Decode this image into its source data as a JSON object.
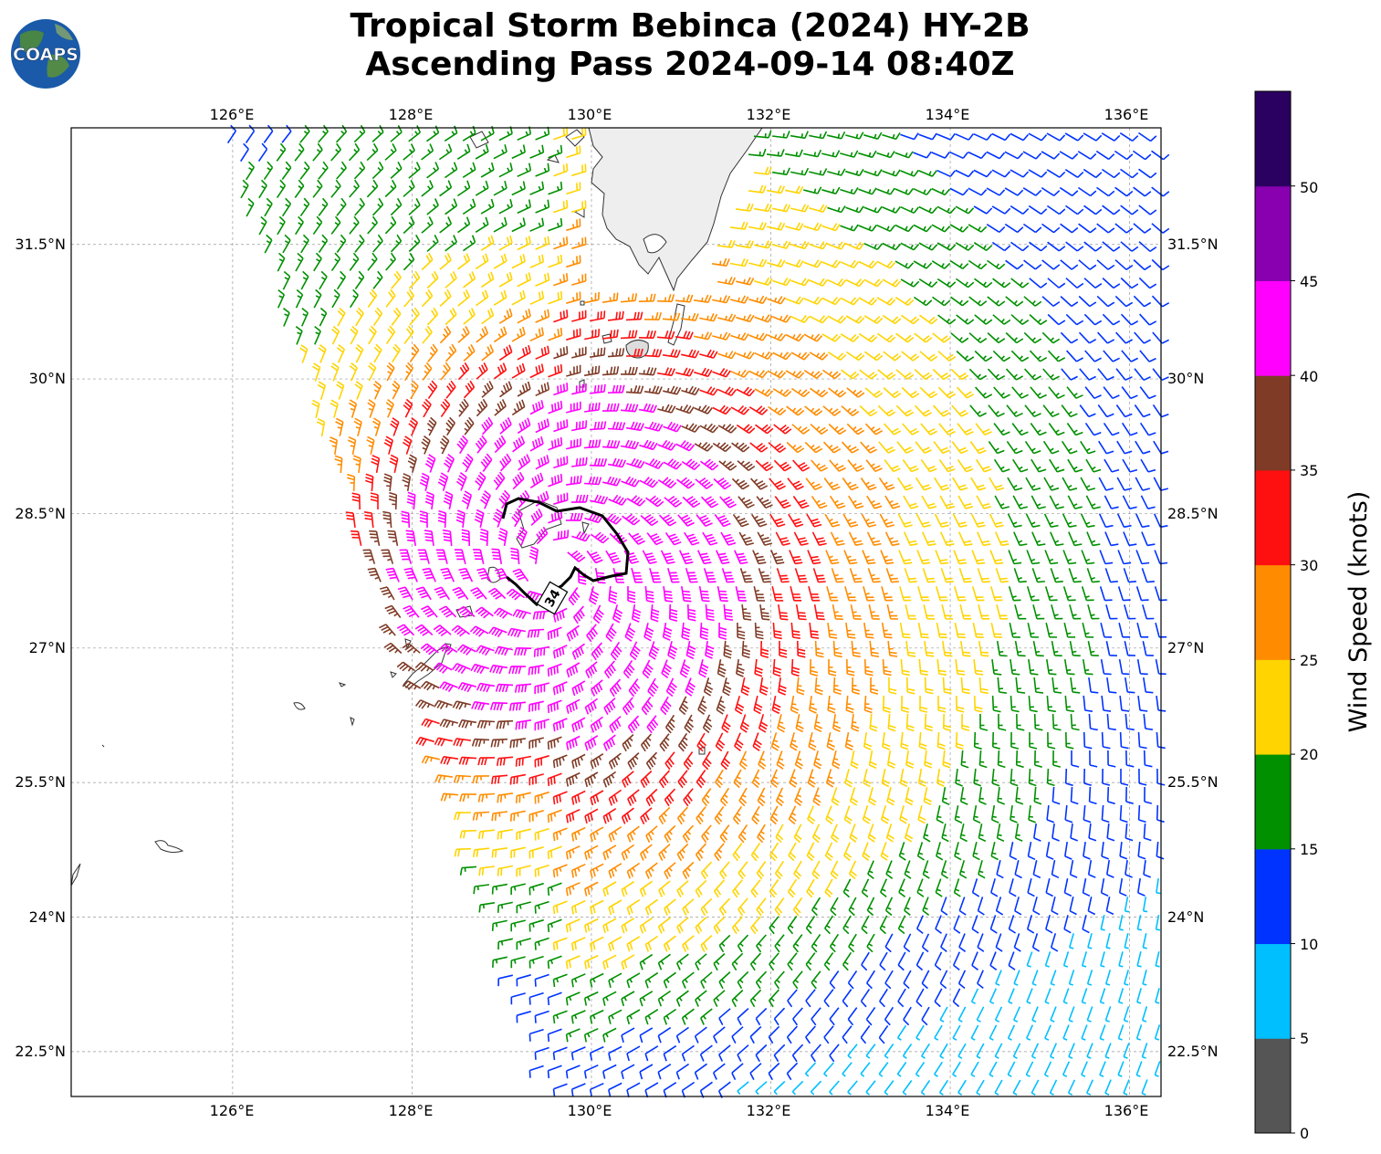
{
  "logo": {
    "text": "COAPS"
  },
  "title": {
    "line1": "Tropical Storm Bebinca (2024) HY-2B",
    "line2": "Ascending Pass 2024-09-14 08:40Z"
  },
  "map": {
    "lon_ticks": [
      "126°E",
      "128°E",
      "130°E",
      "132°E",
      "134°E",
      "136°E"
    ],
    "lat_ticks": [
      "31.5°N",
      "30°N",
      "28.5°N",
      "27°N",
      "25.5°N",
      "24°N",
      "22.5°N"
    ],
    "lon_values": [
      126,
      128,
      130,
      132,
      134,
      136
    ],
    "lat_values": [
      31.5,
      30,
      28.5,
      27,
      25.5,
      24,
      22.5
    ],
    "extent": {
      "lon_min": 124.2,
      "lon_max": 136.35,
      "lat_min": 22.0,
      "lat_max": 32.8
    },
    "gridlines": true,
    "storm_center": {
      "lon": 129.6,
      "lat": 27.9
    },
    "contour": {
      "label": "34",
      "level_knots": 34
    }
  },
  "colorbar": {
    "label": "Wind Speed (knots)",
    "tick_labels": [
      "0",
      "5",
      "10",
      "15",
      "20",
      "25",
      "30",
      "35",
      "40",
      "45",
      "50"
    ],
    "colors": [
      "#555555",
      "#00bfff",
      "#0033ff",
      "#009000",
      "#ffd400",
      "#ff8c00",
      "#ff1010",
      "#7f3b26",
      "#ff00ff",
      "#8800b0",
      "#2a0060"
    ]
  }
}
